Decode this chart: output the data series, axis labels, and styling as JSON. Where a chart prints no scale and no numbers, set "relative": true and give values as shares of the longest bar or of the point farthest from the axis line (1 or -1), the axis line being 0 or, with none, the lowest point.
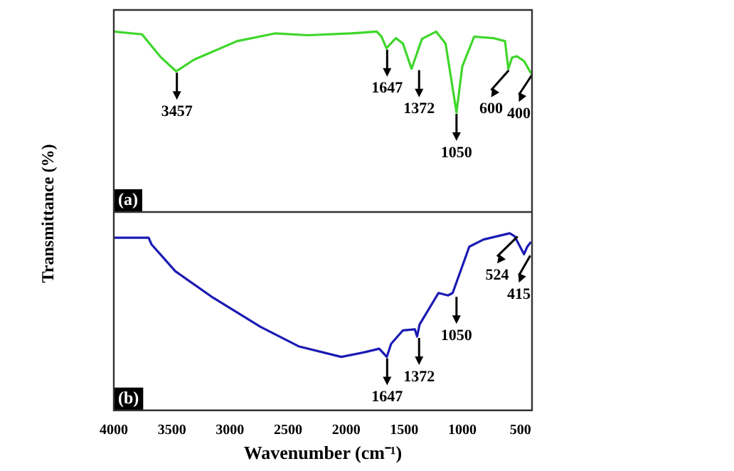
{
  "chart_data": [
    {
      "type": "line",
      "relative": true,
      "ylabel": "Transmittance (%)",
      "xlim": [
        4000,
        400
      ],
      "tick_labels": false,
      "grid": false,
      "legend": false,
      "marker": "none",
      "line_style": "solid",
      "series": [
        {
          "color": "#3ed62a",
          "x": [
            4000,
            3757,
            3594,
            3463,
            3308,
            2940,
            2614,
            2327,
            1960,
            1736,
            1695,
            1653,
            1572,
            1511,
            1437,
            1347,
            1225,
            1144,
            1050,
            1000,
            898,
            734,
            632,
            604,
            571,
            530,
            469,
            408
          ],
          "values": [
            1.0,
            0.985,
            0.857,
            0.78,
            0.845,
            0.947,
            0.99,
            0.98,
            0.99,
            1.0,
            0.972,
            0.908,
            0.964,
            0.934,
            0.794,
            0.96,
            1.0,
            0.934,
            0.552,
            0.807,
            0.972,
            0.964,
            0.947,
            0.794,
            0.857,
            0.863,
            0.837,
            0.768
          ]
        }
      ],
      "annotations": [
        {
          "text": "3457",
          "x": 3457,
          "y": 0.78
        },
        {
          "text": "1647",
          "x": 1647,
          "y": 0.908
        },
        {
          "text": "1372",
          "x": 1372,
          "y": 0.794
        },
        {
          "text": "1050",
          "x": 1050,
          "y": 0.552
        },
        {
          "text": "600",
          "x": 600,
          "y": 0.794
        },
        {
          "text": "400",
          "x": 400,
          "y": 0.768
        },
        "(a)"
      ]
    },
    {
      "type": "line",
      "relative": true,
      "xlabel": "Wavenumber (cm⁻¹)",
      "xlim": [
        4000,
        400
      ],
      "xticks": [
        4000,
        3500,
        3000,
        2500,
        2000,
        1500,
        1000,
        500
      ],
      "tick_labels": "x",
      "grid": false,
      "legend": false,
      "marker": "none",
      "line_style": "solid",
      "series": [
        {
          "color": "#1a1ab4",
          "x": [
            4000,
            3700,
            3675,
            3471,
            3145,
            2737,
            2410,
            2042,
            1837,
            1715,
            1650,
            1613,
            1511,
            1409,
            1389,
            1368,
            1205,
            1123,
            1083,
            940,
            817,
            592,
            551,
            469,
            441,
            408
          ],
          "values": [
            0.975,
            0.975,
            0.937,
            0.786,
            0.636,
            0.472,
            0.362,
            0.302,
            0.329,
            0.348,
            0.302,
            0.376,
            0.452,
            0.458,
            0.417,
            0.485,
            0.663,
            0.649,
            0.663,
            0.924,
            0.965,
            1.0,
            0.984,
            0.882,
            0.924,
            0.951
          ]
        }
      ],
      "annotations": [
        {
          "text": "1647",
          "x": 1647,
          "y": 0.302
        },
        {
          "text": "1372",
          "x": 1372,
          "y": 0.417
        },
        {
          "text": "1050",
          "x": 1050,
          "y": 0.649
        },
        {
          "text": "524",
          "x": 524,
          "y": 0.99
        },
        {
          "text": "415",
          "x": 415,
          "y": 0.882
        },
        "(b)"
      ]
    }
  ]
}
